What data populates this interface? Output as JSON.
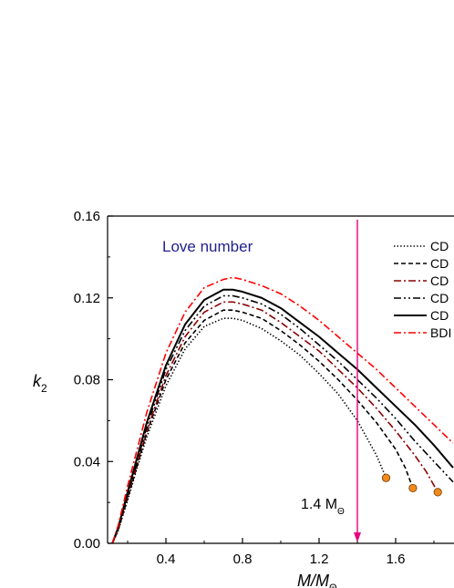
{
  "chart_data": {
    "type": "line",
    "title": "Love number",
    "title_color": "#1f1f8f",
    "xlabel": {
      "main": "M/M",
      "sub": "Θ"
    },
    "ylabel": {
      "main": "k",
      "sub": "2"
    },
    "xlim": [
      0.1,
      1.9
    ],
    "ylim": [
      0.0,
      0.16
    ],
    "xticks": [
      0.4,
      0.8,
      1.2,
      1.6
    ],
    "xtick_labels": [
      "0.4",
      "0.8",
      "1.2",
      "1.6"
    ],
    "yticks": [
      0.0,
      0.04,
      0.08,
      0.12,
      0.16
    ],
    "ytick_labels": [
      "0.00",
      "0.04",
      "0.08",
      "0.12",
      "0.16"
    ],
    "grid": false,
    "legend_position": "top-right",
    "series": [
      {
        "name": "CD",
        "style": "dotted",
        "color": "#000000",
        "x": [
          0.12,
          0.15,
          0.2,
          0.25,
          0.3,
          0.4,
          0.5,
          0.6,
          0.7,
          0.75,
          0.8,
          0.9,
          1.0,
          1.1,
          1.2,
          1.3,
          1.4,
          1.5,
          1.55
        ],
        "y": [
          0.0,
          0.006,
          0.021,
          0.037,
          0.052,
          0.077,
          0.095,
          0.106,
          0.11,
          0.11,
          0.109,
          0.105,
          0.099,
          0.092,
          0.083,
          0.073,
          0.06,
          0.043,
          0.032
        ],
        "endpoint": true
      },
      {
        "name": "CD",
        "style": "dashed",
        "color": "#000000",
        "x": [
          0.12,
          0.15,
          0.2,
          0.25,
          0.3,
          0.4,
          0.5,
          0.6,
          0.7,
          0.75,
          0.8,
          0.9,
          1.0,
          1.1,
          1.2,
          1.3,
          1.4,
          1.5,
          1.6,
          1.65,
          1.69
        ],
        "y": [
          0.0,
          0.0065,
          0.022,
          0.038,
          0.054,
          0.08,
          0.098,
          0.109,
          0.114,
          0.114,
          0.113,
          0.11,
          0.104,
          0.097,
          0.089,
          0.08,
          0.07,
          0.059,
          0.046,
          0.037,
          0.027
        ],
        "endpoint": true
      },
      {
        "name": "CD",
        "style": "dashdot",
        "color": "#8b0000",
        "x": [
          0.12,
          0.15,
          0.2,
          0.25,
          0.3,
          0.4,
          0.5,
          0.6,
          0.7,
          0.75,
          0.8,
          0.9,
          1.0,
          1.1,
          1.2,
          1.3,
          1.4,
          1.5,
          1.6,
          1.7,
          1.76,
          1.82
        ],
        "y": [
          0.0,
          0.007,
          0.023,
          0.039,
          0.055,
          0.082,
          0.101,
          0.113,
          0.118,
          0.118,
          0.117,
          0.114,
          0.108,
          0.101,
          0.094,
          0.085,
          0.076,
          0.066,
          0.055,
          0.043,
          0.035,
          0.025
        ],
        "endpoint": true
      },
      {
        "name": "CD",
        "style": "dashdotdot",
        "color": "#000000",
        "x": [
          0.12,
          0.15,
          0.2,
          0.25,
          0.3,
          0.4,
          0.5,
          0.6,
          0.7,
          0.75,
          0.8,
          0.9,
          1.0,
          1.1,
          1.2,
          1.3,
          1.4,
          1.5,
          1.6,
          1.7,
          1.8,
          1.9
        ],
        "y": [
          0.0,
          0.007,
          0.024,
          0.04,
          0.057,
          0.085,
          0.104,
          0.116,
          0.121,
          0.121,
          0.12,
          0.117,
          0.112,
          0.105,
          0.097,
          0.089,
          0.08,
          0.071,
          0.061,
          0.05,
          0.04,
          0.03
        ]
      },
      {
        "name": "CD",
        "style": "solid",
        "color": "#000000",
        "x": [
          0.12,
          0.15,
          0.2,
          0.25,
          0.3,
          0.4,
          0.5,
          0.6,
          0.7,
          0.75,
          0.8,
          0.9,
          1.0,
          1.1,
          1.2,
          1.3,
          1.4,
          1.5,
          1.6,
          1.7,
          1.8,
          1.9
        ],
        "y": [
          0.0,
          0.0075,
          0.025,
          0.042,
          0.059,
          0.087,
          0.107,
          0.119,
          0.124,
          0.124,
          0.123,
          0.12,
          0.115,
          0.108,
          0.101,
          0.093,
          0.085,
          0.076,
          0.067,
          0.058,
          0.048,
          0.037
        ]
      },
      {
        "name": "BDI",
        "style": "dashdot",
        "color": "#ff0000",
        "x": [
          0.12,
          0.15,
          0.2,
          0.25,
          0.3,
          0.4,
          0.5,
          0.6,
          0.7,
          0.75,
          0.8,
          0.9,
          1.0,
          1.1,
          1.2,
          1.3,
          1.4,
          1.5,
          1.6,
          1.7,
          1.8,
          1.9
        ],
        "y": [
          0.0,
          0.0085,
          0.028,
          0.046,
          0.064,
          0.093,
          0.113,
          0.125,
          0.129,
          0.13,
          0.129,
          0.126,
          0.122,
          0.116,
          0.109,
          0.101,
          0.093,
          0.085,
          0.076,
          0.067,
          0.058,
          0.049
        ]
      }
    ],
    "endpoint_marker_color": "#f08a1c",
    "annotation": {
      "x": 1.4,
      "label_main": "1.4 M",
      "label_sub": "Θ",
      "color": "#e6007e"
    }
  }
}
